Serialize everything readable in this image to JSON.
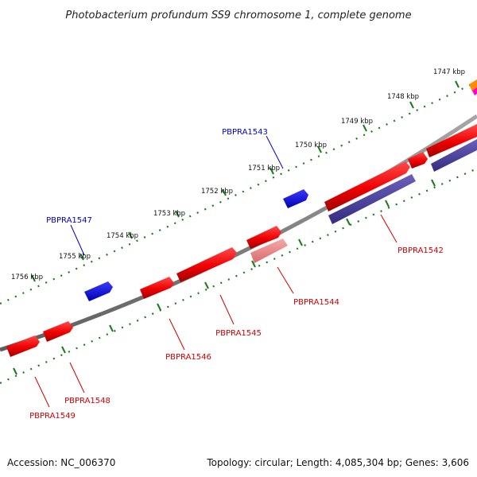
{
  "title": "Photobacterium profundum SS9 chromosome 1, complete genome",
  "footer": {
    "accession": "Accession: NC_006370",
    "topology": "Topology: circular; Length: 4,085,304 bp; Genes: 3,606"
  },
  "scale_labels": [
    "1747 kbp",
    "1748 kbp",
    "1749 kbp",
    "1750 kbp",
    "1751 kbp",
    "1752 kbp",
    "1753 kbp",
    "1754 kbp",
    "1755 kbp",
    "1756 kbp"
  ],
  "gene_labels": {
    "outer": [
      "PBPRA1543",
      "PBPRA1547"
    ],
    "inner": [
      "PBPRA1542",
      "PBPRA1544",
      "PBPRA1545",
      "PBPRA1546",
      "PBPRA1548",
      "PBPRA1549"
    ]
  },
  "colors": {
    "outer_label": "#0000cc",
    "inner_label": "#cc0000",
    "cds": "#ff0000",
    "cds_light": "#f08080",
    "forward_gene": "#0000ff",
    "rna_like": "#4a3f9f",
    "backbone": "#808080",
    "tick": "#1a7a1a"
  }
}
